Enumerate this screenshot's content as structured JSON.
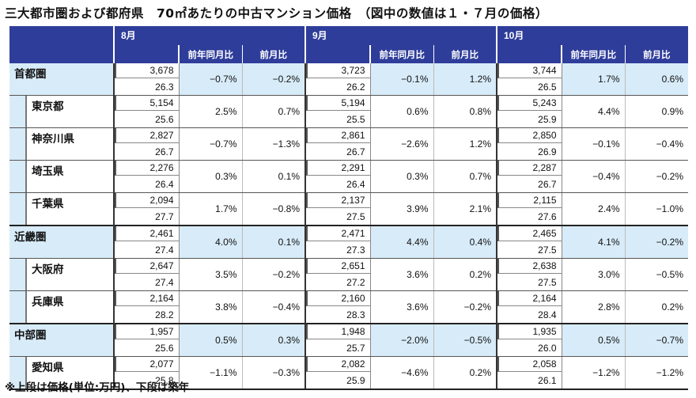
{
  "title": "三大都市圏および都府県　70㎡あたりの中古マンション価格　（図中の数値は１・７月の価格）",
  "footnote": "※上段は価格(単位:万円)、下段は築年",
  "months": [
    "8月",
    "9月",
    "10月"
  ],
  "col_yoy": "前年同月比",
  "col_mom": "前月比",
  "rows": [
    {
      "name": "首都圏",
      "sub": false,
      "cells": [
        {
          "price": "3,678",
          "age": "26.3",
          "yoy": "−0.7%",
          "mom": "−0.2%"
        },
        {
          "price": "3,723",
          "age": "26.2",
          "yoy": "−0.1%",
          "mom": "1.2%"
        },
        {
          "price": "3,744",
          "age": "26.5",
          "yoy": "1.7%",
          "mom": "0.6%"
        }
      ]
    },
    {
      "name": "東京都",
      "sub": true,
      "cells": [
        {
          "price": "5,154",
          "age": "25.6",
          "yoy": "2.5%",
          "mom": "0.7%"
        },
        {
          "price": "5,194",
          "age": "25.5",
          "yoy": "0.6%",
          "mom": "0.8%"
        },
        {
          "price": "5,243",
          "age": "25.9",
          "yoy": "4.4%",
          "mom": "0.9%"
        }
      ]
    },
    {
      "name": "神奈川県",
      "sub": true,
      "cells": [
        {
          "price": "2,827",
          "age": "26.7",
          "yoy": "−0.7%",
          "mom": "−1.3%"
        },
        {
          "price": "2,861",
          "age": "26.7",
          "yoy": "−2.6%",
          "mom": "1.2%"
        },
        {
          "price": "2,850",
          "age": "26.9",
          "yoy": "−0.1%",
          "mom": "−0.4%"
        }
      ]
    },
    {
      "name": "埼玉県",
      "sub": true,
      "cells": [
        {
          "price": "2,276",
          "age": "26.4",
          "yoy": "0.3%",
          "mom": "0.1%"
        },
        {
          "price": "2,291",
          "age": "26.4",
          "yoy": "0.3%",
          "mom": "0.7%"
        },
        {
          "price": "2,287",
          "age": "26.7",
          "yoy": "−0.4%",
          "mom": "−0.2%"
        }
      ]
    },
    {
      "name": "千葉県",
      "sub": true,
      "cells": [
        {
          "price": "2,094",
          "age": "27.7",
          "yoy": "1.7%",
          "mom": "−0.8%"
        },
        {
          "price": "2,137",
          "age": "27.5",
          "yoy": "3.9%",
          "mom": "2.1%"
        },
        {
          "price": "2,115",
          "age": "27.6",
          "yoy": "2.4%",
          "mom": "−1.0%"
        }
      ]
    },
    {
      "name": "近畿圏",
      "sub": false,
      "cells": [
        {
          "price": "2,461",
          "age": "27.4",
          "yoy": "4.0%",
          "mom": "0.1%"
        },
        {
          "price": "2,471",
          "age": "27.3",
          "yoy": "4.4%",
          "mom": "0.4%"
        },
        {
          "price": "2,465",
          "age": "27.5",
          "yoy": "4.1%",
          "mom": "−0.2%"
        }
      ]
    },
    {
      "name": "大阪府",
      "sub": true,
      "cells": [
        {
          "price": "2,647",
          "age": "27.4",
          "yoy": "3.5%",
          "mom": "−0.2%"
        },
        {
          "price": "2,651",
          "age": "27.2",
          "yoy": "3.6%",
          "mom": "0.2%"
        },
        {
          "price": "2,638",
          "age": "27.5",
          "yoy": "3.0%",
          "mom": "−0.5%"
        }
      ]
    },
    {
      "name": "兵庫県",
      "sub": true,
      "cells": [
        {
          "price": "2,164",
          "age": "28.2",
          "yoy": "3.8%",
          "mom": "−0.4%"
        },
        {
          "price": "2,160",
          "age": "28.3",
          "yoy": "3.6%",
          "mom": "−0.2%"
        },
        {
          "price": "2,164",
          "age": "28.4",
          "yoy": "2.8%",
          "mom": "0.2%"
        }
      ]
    },
    {
      "name": "中部圏",
      "sub": false,
      "cells": [
        {
          "price": "1,957",
          "age": "25.6",
          "yoy": "0.5%",
          "mom": "0.3%"
        },
        {
          "price": "1,948",
          "age": "25.7",
          "yoy": "−2.0%",
          "mom": "−0.5%"
        },
        {
          "price": "1,935",
          "age": "26.0",
          "yoy": "0.5%",
          "mom": "−0.7%"
        }
      ]
    },
    {
      "name": "愛知県",
      "sub": true,
      "cells": [
        {
          "price": "2,077",
          "age": "25.8",
          "yoy": "−1.1%",
          "mom": "−0.3%"
        },
        {
          "price": "2,082",
          "age": "25.9",
          "yoy": "−4.6%",
          "mom": "0.2%"
        },
        {
          "price": "2,058",
          "age": "26.1",
          "yoy": "−1.2%",
          "mom": "−1.2%"
        }
      ]
    }
  ]
}
